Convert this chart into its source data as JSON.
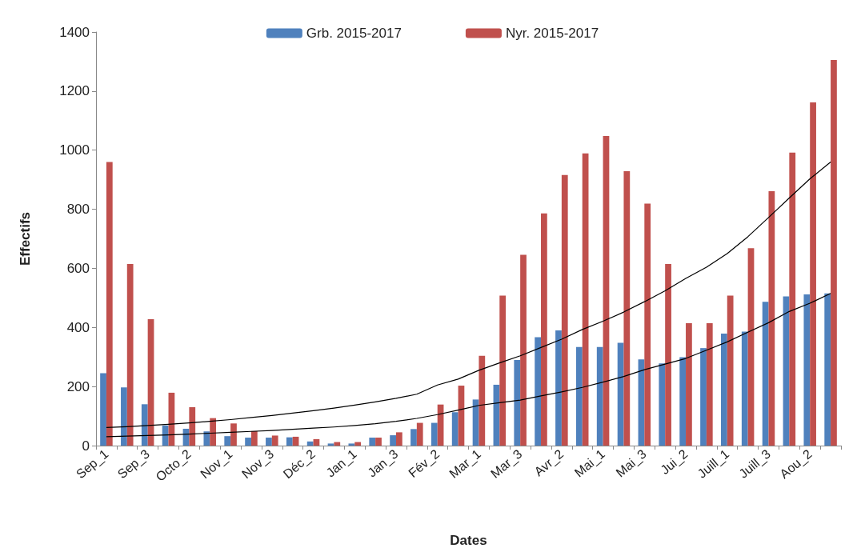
{
  "chart_data": {
    "type": "bar",
    "xlabel": "Dates",
    "ylabel": "Effectifs",
    "categories": [
      "Sep_1",
      null,
      "Sep_3",
      null,
      "Octo_2",
      null,
      "Nov_1",
      null,
      "Nov_3",
      null,
      "Déc_2",
      null,
      "Jan_1",
      null,
      "Jan_3",
      null,
      "Fév_2",
      null,
      "Mar_1",
      null,
      "Mar_3",
      null,
      "Avr_2",
      null,
      "Mai_1",
      null,
      "Mai_3",
      null,
      "Jui_2",
      null,
      "Juill_1",
      null,
      "Juill_3",
      null,
      "Aou_2",
      null
    ],
    "series": [
      {
        "name": "Grb. 2015-2017",
        "color": "#4f81bd",
        "values": [
          245,
          197,
          140,
          68,
          57,
          48,
          32,
          27,
          27,
          28,
          14,
          7,
          7,
          27,
          35,
          56,
          77,
          113,
          156,
          206,
          290,
          367,
          390,
          334,
          334,
          348,
          292,
          278,
          299,
          330,
          379,
          386,
          487,
          505,
          512,
          515
        ]
      },
      {
        "name": "Nyr. 2015-2017",
        "color": "#c0504d",
        "values": [
          960,
          615,
          428,
          179,
          130,
          93,
          75,
          49,
          34,
          30,
          22,
          12,
          12,
          27,
          45,
          77,
          139,
          203,
          304,
          508,
          646,
          786,
          916,
          989,
          1048,
          929,
          819,
          615,
          414,
          414,
          508,
          668,
          861,
          992,
          1162,
          1305
        ]
      },
      {
        "type": "line",
        "color": "#000000",
        "values": [
          30,
          32,
          34,
          36,
          39,
          42,
          45,
          48,
          51,
          55,
          59,
          63,
          68,
          74,
          82,
          92,
          105,
          120,
          136,
          145,
          154,
          168,
          182,
          197,
          215,
          234,
          257,
          276,
          295,
          323,
          351,
          384,
          416,
          454,
          482,
          515
        ]
      },
      {
        "type": "line",
        "color": "#000000",
        "values": [
          61,
          64,
          68,
          72,
          77,
          82,
          88,
          95,
          102,
          110,
          118,
          127,
          137,
          148,
          160,
          174,
          205,
          225,
          255,
          280,
          304,
          332,
          360,
          393,
          421,
          452,
          487,
          524,
          566,
          604,
          650,
          707,
          772,
          838,
          903,
          960
        ]
      }
    ],
    "ylim": [
      0,
      1400
    ],
    "yticks": [
      0,
      200,
      400,
      600,
      800,
      1000,
      1200,
      1400
    ],
    "grid": false,
    "legend": "top",
    "marker": "none"
  }
}
